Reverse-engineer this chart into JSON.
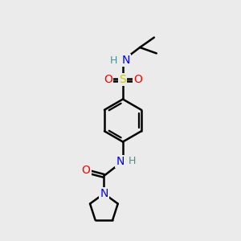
{
  "background_color": "#ebebeb",
  "atom_colors": {
    "C": "#000000",
    "H": "#4a9090",
    "N": "#0000ff",
    "O": "#ff0000",
    "S": "#cccc00"
  },
  "bond_color": "#000000",
  "bond_width": 1.8,
  "figsize": [
    3.0,
    3.0
  ],
  "dpi": 100
}
